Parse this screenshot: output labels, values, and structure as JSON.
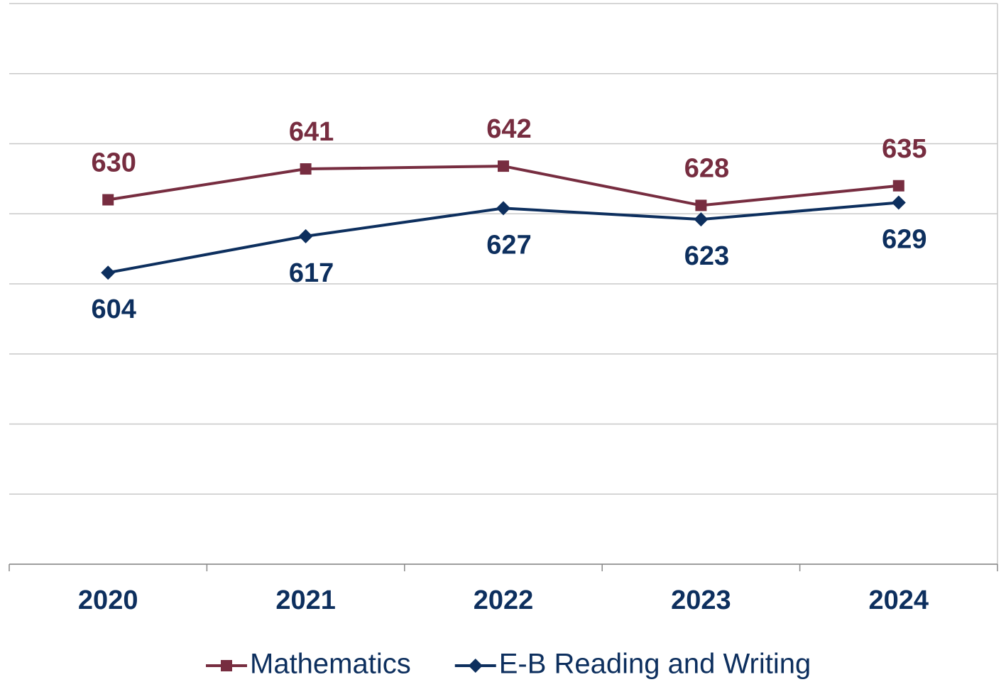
{
  "chart_data": {
    "type": "line",
    "categories": [
      "2020",
      "2021",
      "2022",
      "2023",
      "2024"
    ],
    "series": [
      {
        "name": "Mathematics",
        "color": "#772d40",
        "marker": "square",
        "values": [
          630,
          641,
          642,
          628,
          635
        ]
      },
      {
        "name": "E-B Reading and Writing",
        "color": "#0d2f5e",
        "marker": "diamond",
        "values": [
          604,
          617,
          627,
          623,
          629
        ]
      }
    ],
    "ylim": [
      500,
      700
    ],
    "yticks": [
      500,
      525,
      550,
      575,
      600,
      625,
      650,
      675,
      700
    ],
    "grid": true,
    "legend": "bottom"
  }
}
